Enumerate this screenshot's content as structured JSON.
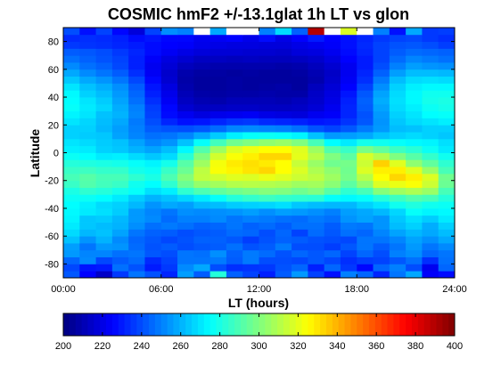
{
  "chart_data": {
    "type": "heatmap",
    "title": "COSMIC hmF2 +/-13.1glat 1h LT vs glon",
    "xlabel": "LT (hours)",
    "ylabel": "Latitude",
    "xlim": [
      0,
      24
    ],
    "ylim": [
      -90,
      90
    ],
    "x_ticks": [
      0,
      6,
      12,
      18,
      24
    ],
    "x_tick_labels": [
      "00:00",
      "06:00",
      "12:00",
      "18:00",
      "24:00"
    ],
    "y_ticks": [
      -80,
      -60,
      -40,
      -20,
      0,
      20,
      40,
      60,
      80
    ],
    "y_tick_labels": [
      "-80",
      "-60",
      "-40",
      "-20",
      "0",
      "20",
      "40",
      "60",
      "80"
    ],
    "x_bin_hours": 1,
    "y_bin_degrees": 5,
    "grid": false,
    "colorbar": {
      "colormap": "jet",
      "range": [
        200,
        400
      ],
      "ticks": [
        200,
        220,
        240,
        260,
        280,
        300,
        320,
        340,
        360,
        380,
        400
      ],
      "tick_labels": [
        "200",
        "220",
        "240",
        "260",
        "280",
        "300",
        "320",
        "340",
        "360",
        "380",
        "400"
      ],
      "placement": "bottom"
    },
    "missing_color": "#ffffff",
    "y_centers": [
      -87.5,
      -82.5,
      -77.5,
      -72.5,
      -67.5,
      -62.5,
      -57.5,
      -52.5,
      -47.5,
      -42.5,
      -37.5,
      -32.5,
      -27.5,
      -22.5,
      -17.5,
      -12.5,
      -7.5,
      -2.5,
      2.5,
      7.5,
      12.5,
      17.5,
      22.5,
      27.5,
      32.5,
      37.5,
      42.5,
      47.5,
      52.5,
      57.5,
      62.5,
      67.5,
      72.5,
      77.5,
      82.5,
      87.5
    ],
    "x_centers": [
      0.5,
      1.5,
      2.5,
      3.5,
      4.5,
      5.5,
      6.5,
      7.5,
      8.5,
      9.5,
      10.5,
      11.5,
      12.5,
      13.5,
      14.5,
      15.5,
      16.5,
      17.5,
      18.5,
      19.5,
      20.5,
      21.5,
      22.5,
      23.5
    ],
    "z": [
      [
        242,
        225,
        214,
        236,
        248,
        241,
        232,
        256,
        243,
        282,
        244,
        238,
        231,
        243,
        255,
        238,
        228,
        250,
        245,
        232,
        248,
        258,
        224,
        227
      ],
      [
        239,
        229,
        230,
        247,
        241,
        230,
        236,
        252,
        258,
        240,
        234,
        235,
        236,
        241,
        245,
        231,
        245,
        236,
        226,
        245,
        250,
        240,
        222,
        245
      ],
      [
        245,
        252,
        239,
        243,
        246,
        233,
        238,
        248,
        248,
        249,
        243,
        249,
        240,
        240,
        239,
        242,
        239,
        234,
        237,
        238,
        242,
        247,
        234,
        247
      ],
      [
        255,
        251,
        251,
        247,
        248,
        242,
        240,
        248,
        247,
        253,
        244,
        249,
        246,
        241,
        245,
        242,
        245,
        238,
        245,
        240,
        250,
        253,
        245,
        248
      ],
      [
        256,
        248,
        255,
        254,
        246,
        241,
        243,
        240,
        242,
        243,
        247,
        241,
        243,
        249,
        240,
        240,
        237,
        242,
        248,
        243,
        248,
        255,
        248,
        252
      ],
      [
        263,
        254,
        260,
        252,
        245,
        242,
        239,
        241,
        244,
        244,
        242,
        237,
        241,
        244,
        243,
        241,
        240,
        239,
        248,
        248,
        251,
        257,
        253,
        258
      ],
      [
        268,
        261,
        263,
        257,
        248,
        244,
        243,
        240,
        242,
        243,
        246,
        245,
        240,
        245,
        238,
        246,
        242,
        247,
        245,
        251,
        257,
        261,
        258,
        262
      ],
      [
        271,
        264,
        262,
        260,
        253,
        247,
        249,
        247,
        244,
        245,
        248,
        244,
        246,
        243,
        247,
        247,
        243,
        249,
        248,
        254,
        262,
        266,
        259,
        266
      ],
      [
        273,
        264,
        265,
        261,
        255,
        252,
        246,
        250,
        250,
        252,
        248,
        250,
        249,
        247,
        246,
        249,
        247,
        254,
        257,
        254,
        264,
        269,
        265,
        271
      ],
      [
        274,
        271,
        269,
        265,
        255,
        251,
        248,
        253,
        252,
        253,
        254,
        256,
        253,
        256,
        255,
        253,
        250,
        256,
        258,
        261,
        267,
        276,
        273,
        274
      ],
      [
        275,
        272,
        268,
        266,
        261,
        254,
        258,
        256,
        261,
        262,
        265,
        266,
        267,
        269,
        264,
        262,
        261,
        261,
        266,
        270,
        278,
        281,
        278,
        277
      ],
      [
        277,
        277,
        275,
        271,
        265,
        260,
        263,
        267,
        271,
        276,
        282,
        285,
        287,
        285,
        284,
        283,
        276,
        274,
        276,
        282,
        287,
        291,
        289,
        282
      ],
      [
        280,
        284,
        282,
        279,
        276,
        269,
        272,
        284,
        290,
        294,
        297,
        299,
        301,
        300,
        297,
        300,
        292,
        284,
        289,
        301,
        306,
        309,
        305,
        289
      ],
      [
        286,
        291,
        288,
        286,
        278,
        275,
        284,
        296,
        304,
        307,
        310,
        311,
        310,
        309,
        306,
        307,
        302,
        293,
        303,
        318,
        321,
        324,
        315,
        296
      ],
      [
        289,
        292,
        289,
        289,
        284,
        280,
        290,
        301,
        313,
        316,
        319,
        318,
        321,
        319,
        315,
        312,
        306,
        298,
        311,
        325,
        333,
        328,
        318,
        297
      ],
      [
        286,
        287,
        285,
        285,
        279,
        277,
        286,
        296,
        312,
        324,
        327,
        330,
        333,
        325,
        318,
        309,
        303,
        297,
        318,
        328,
        328,
        319,
        305,
        289
      ],
      [
        282,
        281,
        280,
        279,
        276,
        273,
        279,
        292,
        306,
        323,
        329,
        331,
        329,
        325,
        314,
        305,
        297,
        298,
        315,
        334,
        319,
        303,
        294,
        284
      ],
      [
        277,
        275,
        271,
        272,
        268,
        264,
        268,
        283,
        300,
        316,
        324,
        328,
        333,
        333,
        320,
        311,
        300,
        293,
        317,
        310,
        300,
        292,
        285,
        278
      ],
      [
        272,
        271,
        266,
        264,
        260,
        257,
        262,
        274,
        291,
        306,
        318,
        322,
        325,
        325,
        319,
        306,
        291,
        286,
        299,
        294,
        287,
        283,
        277,
        271
      ],
      [
        270,
        268,
        265,
        263,
        257,
        251,
        254,
        263,
        276,
        288,
        297,
        300,
        303,
        305,
        300,
        289,
        275,
        271,
        279,
        278,
        276,
        274,
        273,
        269
      ],
      [
        266,
        265,
        264,
        257,
        251,
        247,
        248,
        251,
        258,
        265,
        272,
        276,
        277,
        276,
        273,
        263,
        255,
        256,
        258,
        263,
        266,
        268,
        266,
        264
      ],
      [
        266,
        266,
        261,
        256,
        250,
        243,
        241,
        240,
        242,
        246,
        251,
        252,
        251,
        250,
        247,
        241,
        238,
        242,
        249,
        255,
        262,
        263,
        266,
        266
      ],
      [
        270,
        267,
        262,
        258,
        249,
        240,
        232,
        228,
        229,
        232,
        235,
        236,
        233,
        232,
        231,
        229,
        230,
        235,
        242,
        254,
        264,
        268,
        270,
        272
      ],
      [
        273,
        270,
        263,
        260,
        251,
        238,
        227,
        222,
        219,
        221,
        222,
        223,
        220,
        219,
        218,
        222,
        224,
        232,
        241,
        255,
        266,
        270,
        275,
        276
      ],
      [
        276,
        271,
        267,
        259,
        250,
        237,
        226,
        216,
        213,
        213,
        214,
        214,
        213,
        213,
        214,
        217,
        222,
        232,
        243,
        257,
        268,
        272,
        277,
        279
      ],
      [
        275,
        270,
        265,
        257,
        247,
        234,
        223,
        213,
        210,
        209,
        211,
        211,
        211,
        210,
        212,
        215,
        220,
        231,
        244,
        259,
        269,
        274,
        279,
        280
      ],
      [
        274,
        266,
        262,
        255,
        245,
        231,
        221,
        211,
        208,
        207,
        208,
        208,
        209,
        208,
        208,
        214,
        219,
        229,
        242,
        257,
        268,
        274,
        278,
        278
      ],
      [
        270,
        263,
        259,
        253,
        243,
        229,
        219,
        209,
        206,
        206,
        207,
        206,
        207,
        208,
        206,
        212,
        217,
        225,
        238,
        253,
        266,
        272,
        274,
        274
      ],
      [
        264,
        258,
        254,
        248,
        239,
        226,
        216,
        208,
        206,
        206,
        207,
        206,
        206,
        206,
        206,
        209,
        215,
        223,
        234,
        249,
        262,
        268,
        269,
        268
      ],
      [
        258,
        252,
        248,
        243,
        234,
        223,
        215,
        209,
        207,
        207,
        206,
        207,
        206,
        206,
        207,
        210,
        214,
        222,
        232,
        244,
        256,
        262,
        262,
        261
      ],
      [
        252,
        247,
        244,
        239,
        231,
        222,
        217,
        212,
        210,
        209,
        209,
        209,
        209,
        208,
        209,
        212,
        216,
        222,
        230,
        240,
        250,
        256,
        254,
        253
      ],
      [
        247,
        244,
        241,
        238,
        231,
        224,
        219,
        216,
        213,
        213,
        212,
        213,
        212,
        212,
        213,
        215,
        219,
        225,
        230,
        238,
        246,
        251,
        249,
        247
      ],
      [
        243,
        242,
        240,
        236,
        232,
        227,
        223,
        220,
        218,
        217,
        217,
        216,
        216,
        215,
        218,
        219,
        222,
        227,
        232,
        238,
        243,
        246,
        245,
        244
      ],
      [
        236,
        235,
        234,
        232,
        230,
        227,
        225,
        224,
        221,
        220,
        219,
        219,
        218,
        218,
        220,
        222,
        224,
        228,
        233,
        238,
        241,
        242,
        240,
        237
      ],
      [
        233,
        234,
        233,
        231,
        227,
        229,
        226,
        226,
        222,
        223,
        225,
        221,
        227,
        220,
        225,
        230,
        225,
        228,
        232,
        236,
        238,
        239,
        236,
        234
      ],
      [
        240,
        228,
        238,
        226,
        218,
        238,
        253,
        250,
        null,
        258,
        null,
        null,
        250,
        268,
        244,
        390,
        null,
        318,
        null,
        250,
        228,
        258,
        236,
        237
      ]
    ]
  }
}
